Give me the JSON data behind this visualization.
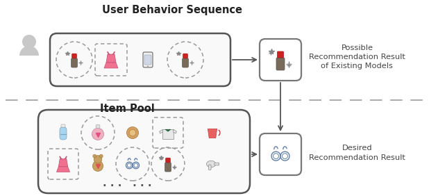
{
  "bg_color": "#ffffff",
  "title_ubs": "User Behavior Sequence",
  "title_ip": "Item Pool",
  "label_possible": "Possible\nRecommendation Result\nof Existing Models",
  "label_desired": "Desired\nRecommendation Result",
  "colors": {
    "box_border": "#555555",
    "box_fill": "#ffffff",
    "dashed_line": "#aaaaaa",
    "arrow": "#555555",
    "title_color": "#222222",
    "label_color": "#444444",
    "seq_box_fill": "#f9f9f9",
    "pool_box_fill": "#f9f9f9",
    "user_gray": "#c8c8c8",
    "dashed_item": "#999999",
    "result_box_border": "#777777"
  },
  "figsize": [
    6.18,
    2.82
  ],
  "dpi": 100
}
